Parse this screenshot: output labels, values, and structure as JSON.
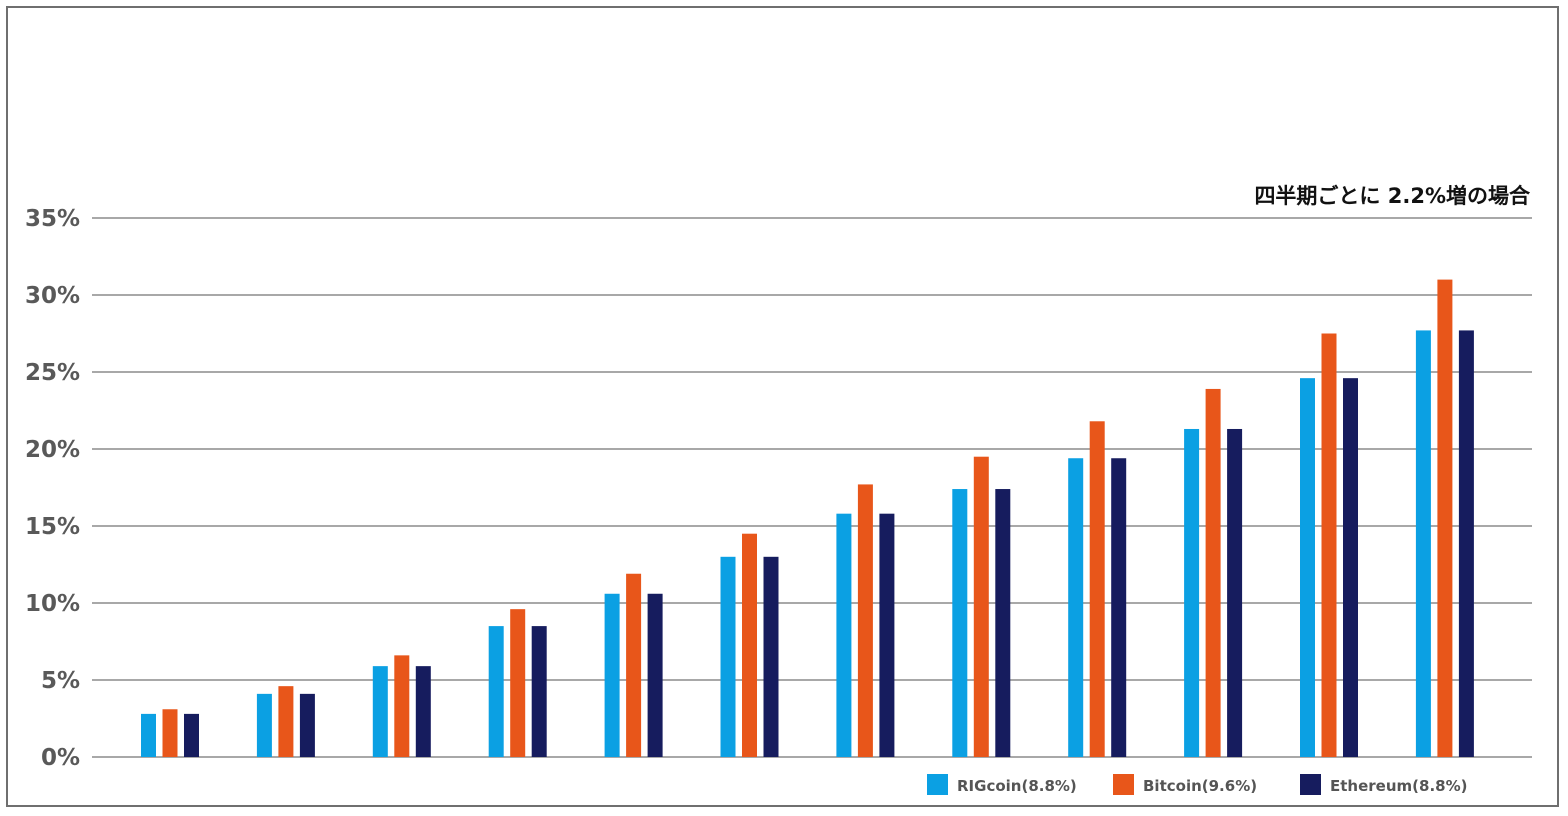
{
  "chart_data": {
    "type": "bar",
    "title": "",
    "subtitle": "四半期ごとに 2.2%増の場合",
    "xlabel": "",
    "ylabel": "",
    "ylim": [
      0,
      35
    ],
    "y_ticks": [
      0,
      5,
      10,
      15,
      20,
      25,
      30,
      35
    ],
    "y_tick_labels": [
      "0%",
      "5%",
      "10%",
      "15%",
      "20%",
      "25%",
      "30%",
      "35%"
    ],
    "grid": true,
    "legend_position": "bottom-right",
    "categories": [
      "",
      "",
      "",
      "",
      "",
      "",
      "",
      "",
      "",
      "",
      "",
      ""
    ],
    "series": [
      {
        "name": "RIGcoin(8.8%)",
        "color": "#0ba0e3",
        "values": [
          2.8,
          4.1,
          5.9,
          8.5,
          10.6,
          13.0,
          15.8,
          17.4,
          19.4,
          21.3,
          24.6,
          27.7
        ]
      },
      {
        "name": "Bitcoin(9.6%)",
        "color": "#e8561a",
        "values": [
          3.1,
          4.6,
          6.6,
          9.6,
          11.9,
          14.5,
          17.7,
          19.5,
          21.8,
          23.9,
          27.5,
          31.0
        ]
      },
      {
        "name": "Ethereum(8.8%)",
        "color": "#161c5e",
        "values": [
          2.8,
          4.1,
          5.9,
          8.5,
          10.6,
          13.0,
          15.8,
          17.4,
          19.4,
          21.3,
          24.6,
          27.7
        ]
      }
    ]
  }
}
